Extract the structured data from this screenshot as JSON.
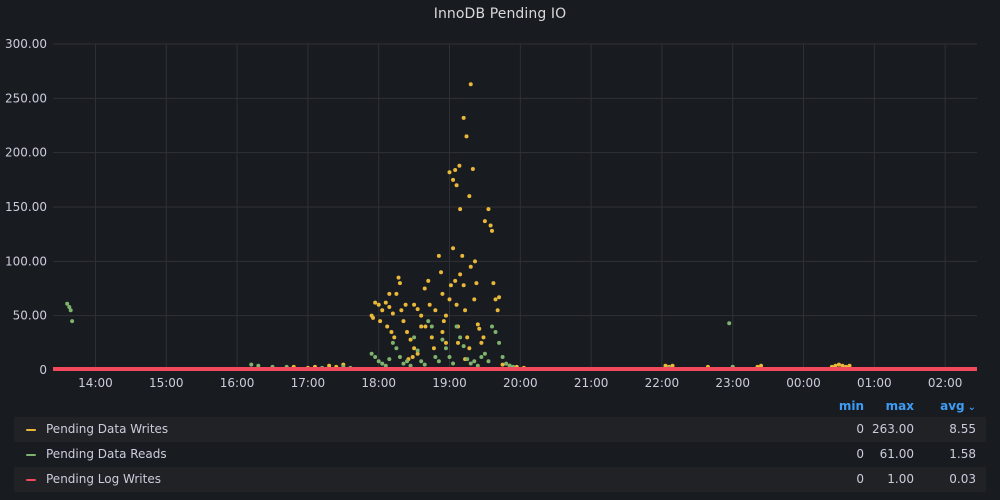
{
  "panel": {
    "title": "InnoDB Pending IO"
  },
  "legend": {
    "columns": {
      "min": "min",
      "max": "max",
      "avg": "avg"
    },
    "sort_icon": "chevron-down-icon",
    "rows": [
      {
        "name": "Pending Data Writes",
        "color": "#eab839",
        "min": "0",
        "max": "263.00",
        "avg": "8.55"
      },
      {
        "name": "Pending Data Reads",
        "color": "#7eb26d",
        "min": "0",
        "max": "61.00",
        "avg": "1.58"
      },
      {
        "name": "Pending Log Writes",
        "color": "#f2495c",
        "min": "0",
        "max": "1.00",
        "avg": "0.03"
      }
    ]
  },
  "chart_data": {
    "type": "scatter",
    "title": "InnoDB Pending IO",
    "x_tick_labels": [
      "14:00",
      "15:00",
      "16:00",
      "17:00",
      "18:00",
      "19:00",
      "20:00",
      "21:00",
      "22:00",
      "23:00",
      "00:00",
      "01:00",
      "02:00"
    ],
    "y_tick_labels": [
      "0",
      "50.00",
      "100.00",
      "150.00",
      "200.00",
      "250.00",
      "300.00"
    ],
    "x_unit": "hours since 14:00",
    "xlim": [
      -0.6,
      12.45
    ],
    "ylim": [
      0,
      300
    ],
    "grid": true,
    "legend_position": "bottom",
    "series": [
      {
        "name": "Pending Data Writes",
        "color": "#eab839",
        "points": [
          [
            3.9,
            50
          ],
          [
            3.95,
            62
          ],
          [
            4.0,
            60
          ],
          [
            4.05,
            55
          ],
          [
            3.92,
            48
          ],
          [
            4.02,
            45
          ],
          [
            4.1,
            62
          ],
          [
            4.15,
            58
          ],
          [
            4.2,
            52
          ],
          [
            4.12,
            40
          ],
          [
            4.18,
            35
          ],
          [
            4.22,
            30
          ],
          [
            4.25,
            70
          ],
          [
            4.28,
            85
          ],
          [
            4.3,
            80
          ],
          [
            4.32,
            55
          ],
          [
            4.35,
            45
          ],
          [
            4.38,
            60
          ],
          [
            4.4,
            35
          ],
          [
            4.45,
            28
          ],
          [
            4.5,
            20
          ],
          [
            4.55,
            15
          ],
          [
            4.42,
            10
          ],
          [
            4.48,
            12
          ],
          [
            4.6,
            40
          ],
          [
            4.65,
            75
          ],
          [
            4.7,
            82
          ],
          [
            4.72,
            60
          ],
          [
            4.75,
            30
          ],
          [
            4.78,
            20
          ],
          [
            4.8,
            55
          ],
          [
            4.85,
            105
          ],
          [
            4.88,
            90
          ],
          [
            4.9,
            70
          ],
          [
            4.92,
            45
          ],
          [
            4.95,
            25
          ],
          [
            5.0,
            65
          ],
          [
            5.02,
            78
          ],
          [
            5.05,
            112
          ],
          [
            5.08,
            82
          ],
          [
            5.1,
            60
          ],
          [
            5.12,
            40
          ],
          [
            5.15,
            88
          ],
          [
            5.18,
            105
          ],
          [
            5.2,
            78
          ],
          [
            5.22,
            55
          ],
          [
            5.25,
            30
          ],
          [
            5.28,
            20
          ],
          [
            5.0,
            182
          ],
          [
            5.08,
            184
          ],
          [
            5.14,
            188
          ],
          [
            5.2,
            232
          ],
          [
            5.24,
            215
          ],
          [
            5.28,
            160
          ],
          [
            5.3,
            263
          ],
          [
            5.33,
            185
          ],
          [
            5.36,
            100
          ],
          [
            5.38,
            80
          ],
          [
            5.4,
            42
          ],
          [
            5.42,
            38
          ],
          [
            5.45,
            25
          ],
          [
            5.48,
            30
          ],
          [
            5.5,
            137
          ],
          [
            5.55,
            148
          ],
          [
            5.58,
            133
          ],
          [
            5.6,
            128
          ],
          [
            5.62,
            80
          ],
          [
            5.65,
            65
          ],
          [
            5.68,
            55
          ],
          [
            5.7,
            67
          ],
          [
            5.15,
            148
          ],
          [
            5.05,
            175
          ],
          [
            5.1,
            170
          ],
          [
            4.5,
            60
          ],
          [
            4.55,
            56
          ],
          [
            4.15,
            70
          ],
          [
            4.6,
            50
          ],
          [
            4.66,
            40
          ],
          [
            4.9,
            35
          ],
          [
            4.95,
            50
          ],
          [
            5.3,
            95
          ],
          [
            5.35,
            65
          ],
          [
            5.12,
            25
          ],
          [
            5.22,
            10
          ],
          [
            5.75,
            4
          ],
          [
            5.85,
            3
          ],
          [
            5.95,
            2
          ],
          [
            6.05,
            1
          ],
          [
            3.3,
            3
          ],
          [
            3.4,
            2
          ],
          [
            3.5,
            4
          ],
          [
            8.05,
            3
          ],
          [
            8.1,
            2
          ],
          [
            8.15,
            3
          ],
          [
            8.65,
            2
          ],
          [
            9.0,
            2
          ],
          [
            9.35,
            2
          ],
          [
            9.4,
            3
          ],
          [
            10.4,
            2
          ],
          [
            10.45,
            3
          ],
          [
            10.5,
            4
          ],
          [
            10.55,
            3
          ],
          [
            10.6,
            2
          ],
          [
            10.65,
            3
          ],
          [
            2.8,
            2
          ],
          [
            3.0,
            1
          ],
          [
            3.1,
            2
          ],
          [
            2.5,
            1
          ]
        ]
      },
      {
        "name": "Pending Data Reads",
        "color": "#7eb26d",
        "points": [
          [
            -0.4,
            61
          ],
          [
            -0.37,
            58
          ],
          [
            -0.35,
            55
          ],
          [
            -0.33,
            45
          ],
          [
            3.9,
            15
          ],
          [
            3.95,
            12
          ],
          [
            4.0,
            8
          ],
          [
            4.05,
            5
          ],
          [
            4.1,
            3
          ],
          [
            4.15,
            10
          ],
          [
            4.2,
            25
          ],
          [
            4.25,
            20
          ],
          [
            4.3,
            12
          ],
          [
            4.35,
            5
          ],
          [
            4.4,
            8
          ],
          [
            4.45,
            3
          ],
          [
            4.5,
            30
          ],
          [
            4.55,
            18
          ],
          [
            4.6,
            8
          ],
          [
            4.65,
            4
          ],
          [
            4.7,
            45
          ],
          [
            4.75,
            40
          ],
          [
            4.8,
            12
          ],
          [
            4.85,
            8
          ],
          [
            4.9,
            28
          ],
          [
            4.95,
            20
          ],
          [
            5.0,
            12
          ],
          [
            5.05,
            6
          ],
          [
            5.1,
            40
          ],
          [
            5.15,
            30
          ],
          [
            5.2,
            22
          ],
          [
            5.25,
            10
          ],
          [
            5.3,
            6
          ],
          [
            5.35,
            8
          ],
          [
            5.4,
            3
          ],
          [
            5.45,
            12
          ],
          [
            5.5,
            15
          ],
          [
            5.55,
            8
          ],
          [
            5.6,
            40
          ],
          [
            5.65,
            35
          ],
          [
            5.7,
            25
          ],
          [
            5.75,
            12
          ],
          [
            5.8,
            5
          ],
          [
            5.85,
            3
          ],
          [
            8.95,
            43
          ],
          [
            2.2,
            4
          ],
          [
            2.3,
            3
          ],
          [
            2.5,
            2
          ],
          [
            2.7,
            2
          ],
          [
            3.2,
            1
          ],
          [
            3.5,
            2
          ],
          [
            3.6,
            1
          ],
          [
            5.9,
            2
          ],
          [
            8.1,
            1
          ],
          [
            9.0,
            2
          ]
        ]
      },
      {
        "name": "Pending Log Writes",
        "color": "#f2495c",
        "points": [
          [
            -0.6,
            0
          ],
          [
            12.45,
            0
          ]
        ]
      }
    ]
  }
}
